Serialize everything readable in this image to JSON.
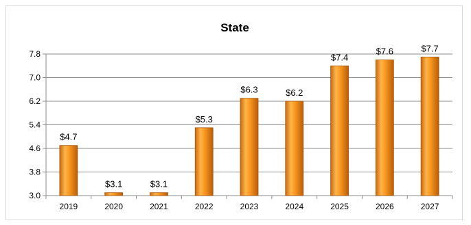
{
  "chart_data": {
    "type": "bar",
    "title": "State",
    "xlabel": "",
    "ylabel": "",
    "categories": [
      "2019",
      "2020",
      "2021",
      "2022",
      "2023",
      "2024",
      "2025",
      "2026",
      "2027"
    ],
    "values": [
      4.7,
      3.1,
      3.1,
      5.3,
      6.3,
      6.2,
      7.4,
      7.6,
      7.7
    ],
    "data_labels": [
      "$4.7",
      "$3.1",
      "$3.1",
      "$5.3",
      "$6.3",
      "$6.2",
      "$7.4",
      "$7.6",
      "$7.7"
    ],
    "ylim": [
      3.0,
      7.8
    ],
    "yticks": [
      "3.0",
      "3.8",
      "4.6",
      "5.4",
      "6.2",
      "7.0",
      "7.8"
    ],
    "grid": true,
    "legend": "none",
    "bar_color": "#f5901e"
  }
}
